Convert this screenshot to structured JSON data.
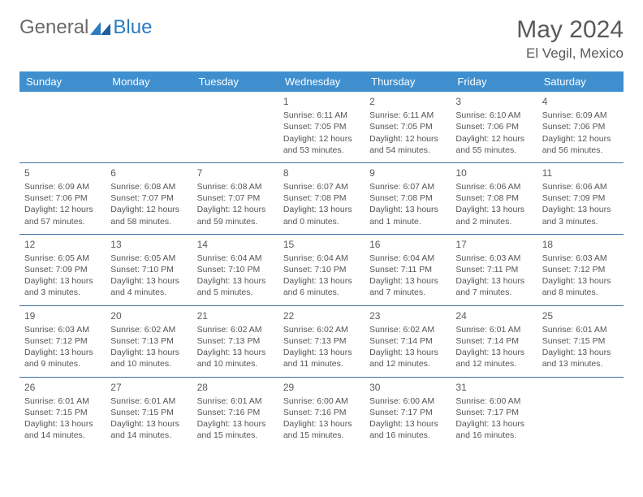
{
  "brand": {
    "general": "General",
    "blue": "Blue"
  },
  "title": "May 2024",
  "location": "El Vegil, Mexico",
  "colors": {
    "header_bg": "#3f8fcf",
    "header_text": "#ffffff",
    "row_border": "#3f6fa0",
    "body_text": "#555555",
    "title_text": "#5a5a5a",
    "logo_gray": "#6a6a6a",
    "logo_blue": "#2b7bbf"
  },
  "days_of_week": [
    "Sunday",
    "Monday",
    "Tuesday",
    "Wednesday",
    "Thursday",
    "Friday",
    "Saturday"
  ],
  "weeks": [
    [
      null,
      null,
      null,
      {
        "n": "1",
        "sr": "Sunrise: 6:11 AM",
        "ss": "Sunset: 7:05 PM",
        "d1": "Daylight: 12 hours",
        "d2": "and 53 minutes."
      },
      {
        "n": "2",
        "sr": "Sunrise: 6:11 AM",
        "ss": "Sunset: 7:05 PM",
        "d1": "Daylight: 12 hours",
        "d2": "and 54 minutes."
      },
      {
        "n": "3",
        "sr": "Sunrise: 6:10 AM",
        "ss": "Sunset: 7:06 PM",
        "d1": "Daylight: 12 hours",
        "d2": "and 55 minutes."
      },
      {
        "n": "4",
        "sr": "Sunrise: 6:09 AM",
        "ss": "Sunset: 7:06 PM",
        "d1": "Daylight: 12 hours",
        "d2": "and 56 minutes."
      }
    ],
    [
      {
        "n": "5",
        "sr": "Sunrise: 6:09 AM",
        "ss": "Sunset: 7:06 PM",
        "d1": "Daylight: 12 hours",
        "d2": "and 57 minutes."
      },
      {
        "n": "6",
        "sr": "Sunrise: 6:08 AM",
        "ss": "Sunset: 7:07 PM",
        "d1": "Daylight: 12 hours",
        "d2": "and 58 minutes."
      },
      {
        "n": "7",
        "sr": "Sunrise: 6:08 AM",
        "ss": "Sunset: 7:07 PM",
        "d1": "Daylight: 12 hours",
        "d2": "and 59 minutes."
      },
      {
        "n": "8",
        "sr": "Sunrise: 6:07 AM",
        "ss": "Sunset: 7:08 PM",
        "d1": "Daylight: 13 hours",
        "d2": "and 0 minutes."
      },
      {
        "n": "9",
        "sr": "Sunrise: 6:07 AM",
        "ss": "Sunset: 7:08 PM",
        "d1": "Daylight: 13 hours",
        "d2": "and 1 minute."
      },
      {
        "n": "10",
        "sr": "Sunrise: 6:06 AM",
        "ss": "Sunset: 7:08 PM",
        "d1": "Daylight: 13 hours",
        "d2": "and 2 minutes."
      },
      {
        "n": "11",
        "sr": "Sunrise: 6:06 AM",
        "ss": "Sunset: 7:09 PM",
        "d1": "Daylight: 13 hours",
        "d2": "and 3 minutes."
      }
    ],
    [
      {
        "n": "12",
        "sr": "Sunrise: 6:05 AM",
        "ss": "Sunset: 7:09 PM",
        "d1": "Daylight: 13 hours",
        "d2": "and 3 minutes."
      },
      {
        "n": "13",
        "sr": "Sunrise: 6:05 AM",
        "ss": "Sunset: 7:10 PM",
        "d1": "Daylight: 13 hours",
        "d2": "and 4 minutes."
      },
      {
        "n": "14",
        "sr": "Sunrise: 6:04 AM",
        "ss": "Sunset: 7:10 PM",
        "d1": "Daylight: 13 hours",
        "d2": "and 5 minutes."
      },
      {
        "n": "15",
        "sr": "Sunrise: 6:04 AM",
        "ss": "Sunset: 7:10 PM",
        "d1": "Daylight: 13 hours",
        "d2": "and 6 minutes."
      },
      {
        "n": "16",
        "sr": "Sunrise: 6:04 AM",
        "ss": "Sunset: 7:11 PM",
        "d1": "Daylight: 13 hours",
        "d2": "and 7 minutes."
      },
      {
        "n": "17",
        "sr": "Sunrise: 6:03 AM",
        "ss": "Sunset: 7:11 PM",
        "d1": "Daylight: 13 hours",
        "d2": "and 7 minutes."
      },
      {
        "n": "18",
        "sr": "Sunrise: 6:03 AM",
        "ss": "Sunset: 7:12 PM",
        "d1": "Daylight: 13 hours",
        "d2": "and 8 minutes."
      }
    ],
    [
      {
        "n": "19",
        "sr": "Sunrise: 6:03 AM",
        "ss": "Sunset: 7:12 PM",
        "d1": "Daylight: 13 hours",
        "d2": "and 9 minutes."
      },
      {
        "n": "20",
        "sr": "Sunrise: 6:02 AM",
        "ss": "Sunset: 7:13 PM",
        "d1": "Daylight: 13 hours",
        "d2": "and 10 minutes."
      },
      {
        "n": "21",
        "sr": "Sunrise: 6:02 AM",
        "ss": "Sunset: 7:13 PM",
        "d1": "Daylight: 13 hours",
        "d2": "and 10 minutes."
      },
      {
        "n": "22",
        "sr": "Sunrise: 6:02 AM",
        "ss": "Sunset: 7:13 PM",
        "d1": "Daylight: 13 hours",
        "d2": "and 11 minutes."
      },
      {
        "n": "23",
        "sr": "Sunrise: 6:02 AM",
        "ss": "Sunset: 7:14 PM",
        "d1": "Daylight: 13 hours",
        "d2": "and 12 minutes."
      },
      {
        "n": "24",
        "sr": "Sunrise: 6:01 AM",
        "ss": "Sunset: 7:14 PM",
        "d1": "Daylight: 13 hours",
        "d2": "and 12 minutes."
      },
      {
        "n": "25",
        "sr": "Sunrise: 6:01 AM",
        "ss": "Sunset: 7:15 PM",
        "d1": "Daylight: 13 hours",
        "d2": "and 13 minutes."
      }
    ],
    [
      {
        "n": "26",
        "sr": "Sunrise: 6:01 AM",
        "ss": "Sunset: 7:15 PM",
        "d1": "Daylight: 13 hours",
        "d2": "and 14 minutes."
      },
      {
        "n": "27",
        "sr": "Sunrise: 6:01 AM",
        "ss": "Sunset: 7:15 PM",
        "d1": "Daylight: 13 hours",
        "d2": "and 14 minutes."
      },
      {
        "n": "28",
        "sr": "Sunrise: 6:01 AM",
        "ss": "Sunset: 7:16 PM",
        "d1": "Daylight: 13 hours",
        "d2": "and 15 minutes."
      },
      {
        "n": "29",
        "sr": "Sunrise: 6:00 AM",
        "ss": "Sunset: 7:16 PM",
        "d1": "Daylight: 13 hours",
        "d2": "and 15 minutes."
      },
      {
        "n": "30",
        "sr": "Sunrise: 6:00 AM",
        "ss": "Sunset: 7:17 PM",
        "d1": "Daylight: 13 hours",
        "d2": "and 16 minutes."
      },
      {
        "n": "31",
        "sr": "Sunrise: 6:00 AM",
        "ss": "Sunset: 7:17 PM",
        "d1": "Daylight: 13 hours",
        "d2": "and 16 minutes."
      },
      null
    ]
  ]
}
